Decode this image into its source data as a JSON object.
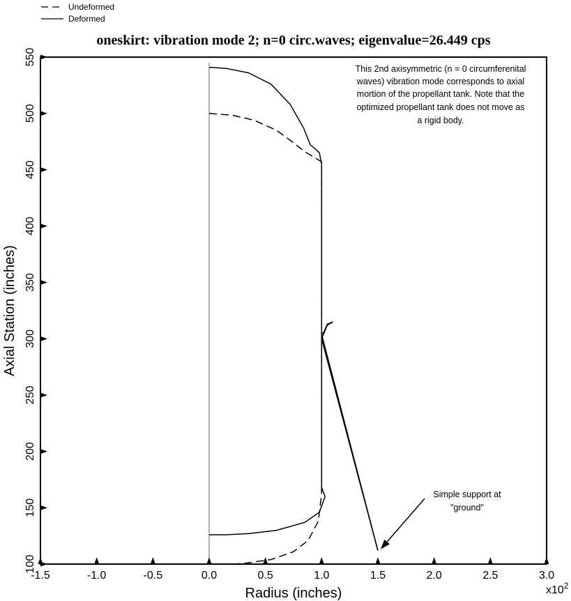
{
  "chart_data": {
    "type": "line",
    "title": "oneskirt: vibration mode 2; n=0 circ.waves; eigenvalue=26.449 cps",
    "xlabel": "Radius (inches)",
    "ylabel": "Axial Station (inches)",
    "x_multiplier_label": "x10",
    "x_multiplier_exponent": "2",
    "xlim": [
      -1.5,
      3.0
    ],
    "ylim": [
      100,
      550
    ],
    "x_ticks": [
      "-1.5",
      "-1.0",
      "-0.5",
      "0.0",
      "0.5",
      "1.0",
      "1.5",
      "2.0",
      "2.5",
      "3.0"
    ],
    "y_ticks": [
      "100",
      "150",
      "200",
      "250",
      "300",
      "350",
      "400",
      "450",
      "500",
      "550"
    ],
    "legend": [
      {
        "label": "Undeformed",
        "style": "dashed"
      },
      {
        "label": "Deformed",
        "style": "solid"
      }
    ],
    "legend_position": "top-left",
    "series": [
      {
        "name": "Undeformed",
        "style": "dashed",
        "points": [
          [
            0.0,
            500
          ],
          [
            0.2,
            498.5
          ],
          [
            0.4,
            494
          ],
          [
            0.6,
            485
          ],
          [
            0.75,
            474
          ],
          [
            0.85,
            466
          ],
          [
            0.92,
            462
          ],
          [
            1.0,
            457
          ],
          [
            1.0,
            300
          ],
          [
            1.5,
            112
          ],
          [
            1.0,
            300
          ],
          [
            1.0,
            162
          ],
          [
            0.97,
            138
          ],
          [
            0.88,
            121
          ],
          [
            0.75,
            111
          ],
          [
            0.55,
            104
          ],
          [
            0.3,
            100.5
          ],
          [
            0.2,
            100
          ]
        ]
      },
      {
        "name": "Deformed",
        "style": "solid",
        "points": [
          [
            0.0,
            541
          ],
          [
            0.15,
            540
          ],
          [
            0.35,
            536
          ],
          [
            0.55,
            526
          ],
          [
            0.72,
            508
          ],
          [
            0.84,
            487
          ],
          [
            0.9,
            472
          ],
          [
            0.95,
            468
          ],
          [
            0.98,
            465
          ],
          [
            1.0,
            455
          ],
          [
            1.0,
            330
          ],
          [
            1.0,
            300
          ],
          [
            1.05,
            312
          ],
          [
            1.1,
            315
          ],
          [
            1.05,
            313
          ],
          [
            1.02,
            306
          ],
          [
            1.0,
            304
          ],
          [
            1.5,
            112
          ],
          [
            1.0,
            304
          ],
          [
            1.0,
            168
          ],
          [
            1.03,
            160
          ],
          [
            0.98,
            146
          ],
          [
            0.85,
            137
          ],
          [
            0.6,
            130
          ],
          [
            0.35,
            127
          ],
          [
            0.15,
            126
          ],
          [
            0.0,
            126
          ]
        ]
      }
    ],
    "reference_line": {
      "x": 0.0,
      "style": "thin"
    },
    "annotations": [
      {
        "lines": [
          "This 2nd axisymmetric (n = 0 circumferenital",
          "waves) vibration mode corresponds to axial",
          "mortion of the propellant tank. Note that the",
          "optimized propellant tank does not move as",
          "a rigid body."
        ]
      },
      {
        "lines": [
          "Simple support at",
          "\"ground\""
        ],
        "arrow_target": [
          1.5,
          112
        ]
      }
    ],
    "grid": false
  }
}
